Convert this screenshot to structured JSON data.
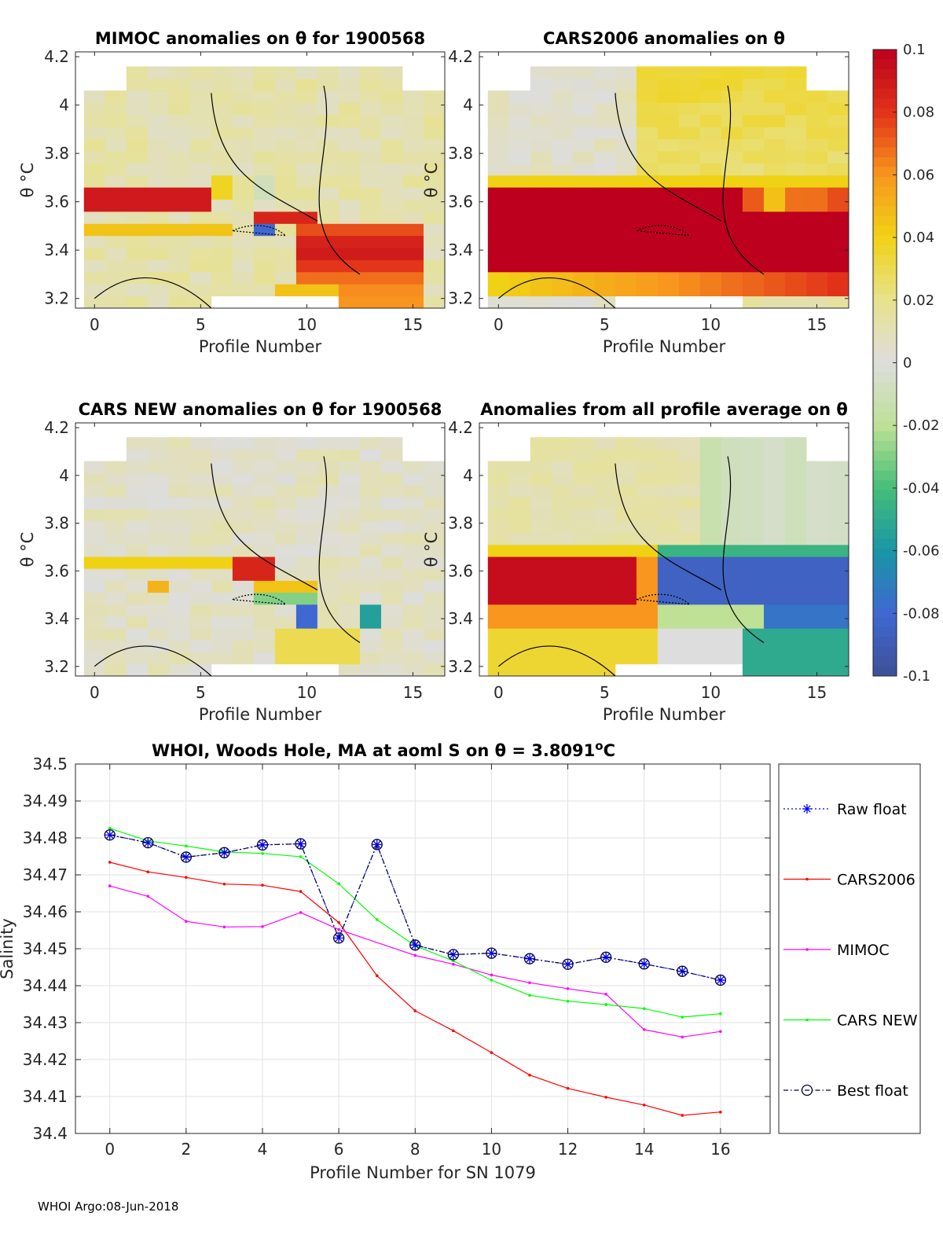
{
  "footer": "WHOI Argo:08-Jun-2018",
  "colors": {
    "raw_float": "#0000ff",
    "cars2006": "#ff0000",
    "mimoc": "#ff00ff",
    "cars_new": "#00ff00",
    "best_float": "#000044"
  },
  "chart_data": [
    {
      "id": "mimoc",
      "type": "heatmap",
      "title": "MIMOC anomalies on θ  for 1900568",
      "xlabel": "Profile Number",
      "ylabel": "θ °C",
      "xlim": [
        -0.9,
        16.5
      ],
      "ylim": [
        3.16,
        4.22
      ],
      "xticks": [
        0,
        5,
        10,
        15
      ],
      "yticks": [
        3.2,
        3.4,
        3.6,
        3.8,
        4.0,
        4.2
      ],
      "ytick_labels": [
        "3.2",
        "3.4",
        "3.6",
        "3.8",
        "4",
        "4.2"
      ],
      "notes": "Approximate anomaly field: near-zero above 3.7 °C, strong positive band near 3.6 °C for profiles 0-5, positive maximum below 3.5 °C for profiles 10-15"
    },
    {
      "id": "cars2006",
      "type": "heatmap",
      "title": "CARS2006 anomalies on θ",
      "xlabel": "Profile Number",
      "ylabel": "",
      "xlim": [
        -0.9,
        16.5
      ],
      "ylim": [
        3.16,
        4.22
      ],
      "xticks": [
        0,
        5,
        10,
        15
      ],
      "yticks": [
        3.2,
        3.4,
        3.6,
        3.8,
        4.0,
        4.2
      ],
      "ytick_labels": [
        "3.2",
        "3.4",
        "3.6",
        "3.8",
        "4",
        "4.2"
      ],
      "notes": "Broad positive anomaly (>0.08) between 3.35 and 3.65 °C across all profiles; warm/yellow above for profiles 7-16"
    },
    {
      "id": "cars_new",
      "type": "heatmap",
      "title": "CARS NEW anomalies on θ for 1900568",
      "xlabel": "Profile Number",
      "ylabel": "θ °C",
      "xlim": [
        -0.9,
        16.5
      ],
      "ylim": [
        3.16,
        4.22
      ],
      "xticks": [
        0,
        5,
        10,
        15
      ],
      "yticks": [
        3.2,
        3.4,
        3.6,
        3.8,
        4.0,
        4.2
      ],
      "ytick_labels": [
        "3.2",
        "3.4",
        "3.6",
        "3.8",
        "4",
        "4.2"
      ],
      "notes": "Mostly near-zero; moderate positive band near 3.6 °C, mixed small negative patches near 3.4-3.5 °C"
    },
    {
      "id": "all_profile_avg",
      "type": "heatmap",
      "title": "Anomalies from all profile average on θ",
      "xlabel": "Profile Number",
      "ylabel": "",
      "xlim": [
        -0.9,
        16.5
      ],
      "ylim": [
        3.16,
        4.22
      ],
      "xticks": [
        0,
        5,
        10,
        15
      ],
      "yticks": [
        3.2,
        3.4,
        3.6,
        3.8,
        4.0,
        4.2
      ],
      "ytick_labels": [
        "3.2",
        "3.4",
        "3.6",
        "3.8",
        "4",
        "4.2"
      ],
      "notes": "Strong positive (red) anomaly 3.45-3.65 °C for profiles 0-7; strong negative (blue) anomaly for profiles 8-16 at the same levels"
    },
    {
      "id": "colorbar",
      "type": "colorbar",
      "range": [
        -0.1,
        0.1
      ],
      "tick_values": [
        0.1,
        0.08,
        0.06,
        0.04,
        0.02,
        0,
        -0.02,
        -0.04,
        -0.06,
        -0.08,
        -0.1
      ],
      "tick_labels": [
        "0.1",
        "0.08",
        "0.06",
        "0.04",
        "0.02",
        "0",
        "-0.02",
        "-0.04",
        "-0.06",
        "-0.08",
        "-0.1"
      ]
    },
    {
      "id": "salinity",
      "type": "line",
      "title": "WHOI, Woods Hole, MA at aoml S on θ = 3.8091",
      "title_unit": "C",
      "xlabel": "Profile Number for SN 1079",
      "ylabel": "Salinity",
      "xlim": [
        -0.9,
        17.3
      ],
      "ylim": [
        34.4,
        34.5
      ],
      "grid": true,
      "legend_position": "outside-right",
      "xticks": [
        0,
        2,
        4,
        6,
        8,
        10,
        12,
        14,
        16
      ],
      "yticks": [
        34.4,
        34.41,
        34.42,
        34.43,
        34.44,
        34.45,
        34.46,
        34.47,
        34.48,
        34.49,
        34.5
      ],
      "ytick_labels": [
        "34.4",
        "34.41",
        "34.42",
        "34.43",
        "34.44",
        "34.45",
        "34.46",
        "34.47",
        "34.48",
        "34.49",
        "34.5"
      ],
      "series": [
        {
          "name": "Raw float",
          "x": [
            0,
            1,
            2,
            3,
            4,
            5,
            6,
            7,
            8,
            9,
            10,
            11,
            12,
            13,
            14,
            15,
            16
          ],
          "values": [
            34.4808,
            34.4787,
            34.4748,
            34.476,
            34.4781,
            34.4784,
            34.4529,
            34.4782,
            34.451,
            34.4484,
            34.4488,
            34.4473,
            34.4458,
            34.4477,
            34.4459,
            34.4439,
            34.4415
          ]
        },
        {
          "name": "CARS2006",
          "x": [
            0,
            1,
            2,
            3,
            4,
            5,
            6,
            7,
            8,
            9,
            10,
            11,
            12,
            13,
            14,
            15,
            16
          ],
          "values": [
            34.4734,
            34.4708,
            34.4693,
            34.4675,
            34.4672,
            34.4655,
            34.4571,
            34.4427,
            34.4332,
            34.4278,
            34.4219,
            34.4158,
            34.4122,
            34.4098,
            34.4077,
            34.4049,
            34.4058
          ]
        },
        {
          "name": "MIMOC",
          "x": [
            0,
            1,
            2,
            3,
            4,
            5,
            6,
            8,
            9,
            10,
            11,
            12,
            13,
            14,
            15,
            16
          ],
          "values": [
            34.467,
            34.4642,
            34.4574,
            34.4559,
            34.456,
            34.4598,
            34.4552,
            34.4482,
            34.4458,
            34.4429,
            34.4408,
            34.4392,
            34.4377,
            34.4281,
            34.4261,
            34.4276
          ]
        },
        {
          "name": "CARS NEW",
          "x": [
            0,
            1,
            2,
            3,
            4,
            5,
            6,
            7,
            8,
            9,
            10,
            11,
            12,
            13,
            14,
            15,
            16
          ],
          "values": [
            34.4826,
            34.4792,
            34.4778,
            34.4762,
            34.4758,
            34.4749,
            34.4676,
            34.4579,
            34.4508,
            34.4467,
            34.4415,
            34.4374,
            34.4358,
            34.4349,
            34.4338,
            34.4315,
            34.4324
          ]
        },
        {
          "name": "Best float",
          "x": [
            0,
            1,
            2,
            3,
            4,
            5,
            6,
            7,
            8,
            9,
            10,
            11,
            12,
            13,
            14,
            15,
            16
          ],
          "values": [
            34.4808,
            34.4787,
            34.4748,
            34.476,
            34.4781,
            34.4784,
            34.4529,
            34.4782,
            34.451,
            34.4484,
            34.4488,
            34.4473,
            34.4458,
            34.4477,
            34.4459,
            34.4439,
            34.4415
          ]
        }
      ]
    }
  ]
}
